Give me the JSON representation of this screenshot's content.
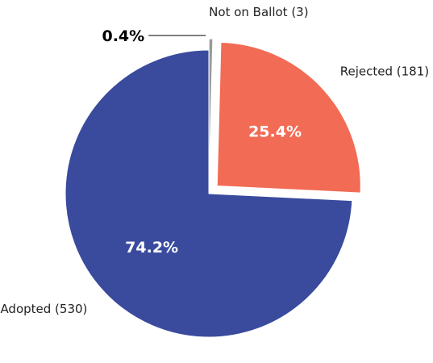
{
  "chart_data": {
    "type": "pie",
    "categories": [
      "Adopted (530)",
      "Rejected (181)",
      "Not on Ballot (3)"
    ],
    "values": [
      530,
      181,
      3
    ],
    "percent_labels": [
      "74.2%",
      "25.4%",
      "0.4%"
    ],
    "colors": [
      "#3a4b9e",
      "#f26b55",
      "#9a9a9a"
    ],
    "exploded": [
      false,
      true,
      true
    ],
    "title": ""
  }
}
